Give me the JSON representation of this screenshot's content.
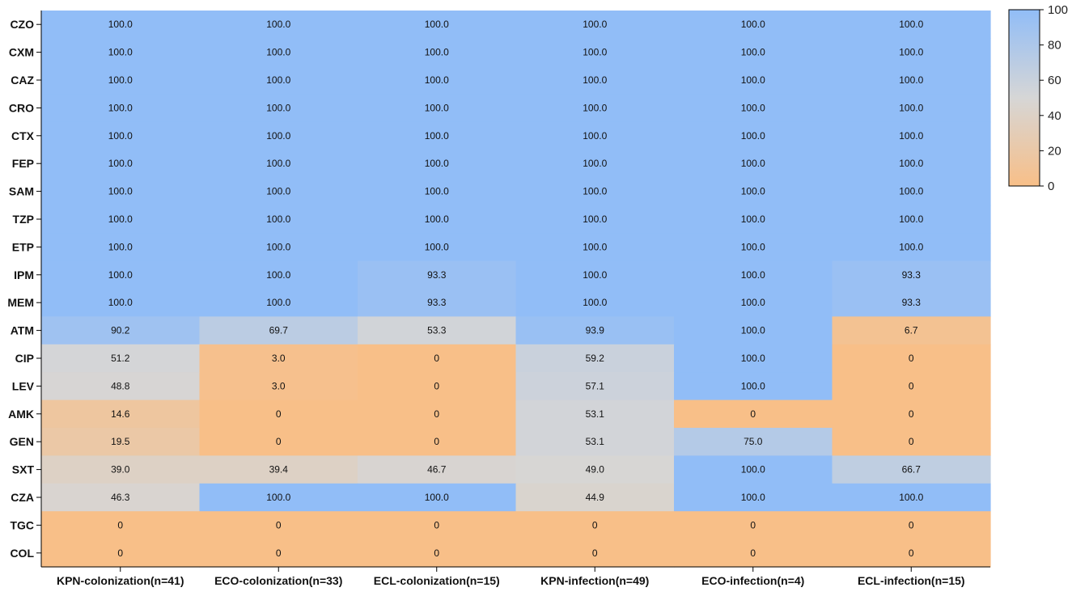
{
  "chart_data": {
    "type": "heatmap",
    "title": "",
    "xlabel": "",
    "ylabel": "",
    "columns": [
      "KPN-colonization(n=41)",
      "ECO-colonization(n=33)",
      "ECL-colonization(n=15)",
      "KPN-infection(n=49)",
      "ECO-infection(n=4)",
      "ECL-infection(n=15)"
    ],
    "rows": [
      "CZO",
      "CXM",
      "CAZ",
      "CRO",
      "CTX",
      "FEP",
      "SAM",
      "TZP",
      "ETP",
      "IPM",
      "MEM",
      "ATM",
      "CIP",
      "LEV",
      "AMK",
      "GEN",
      "SXT",
      "CZA",
      "TGC",
      "COL"
    ],
    "values": [
      [
        100.0,
        100.0,
        100.0,
        100.0,
        100.0,
        100.0
      ],
      [
        100.0,
        100.0,
        100.0,
        100.0,
        100.0,
        100.0
      ],
      [
        100.0,
        100.0,
        100.0,
        100.0,
        100.0,
        100.0
      ],
      [
        100.0,
        100.0,
        100.0,
        100.0,
        100.0,
        100.0
      ],
      [
        100.0,
        100.0,
        100.0,
        100.0,
        100.0,
        100.0
      ],
      [
        100.0,
        100.0,
        100.0,
        100.0,
        100.0,
        100.0
      ],
      [
        100.0,
        100.0,
        100.0,
        100.0,
        100.0,
        100.0
      ],
      [
        100.0,
        100.0,
        100.0,
        100.0,
        100.0,
        100.0
      ],
      [
        100.0,
        100.0,
        100.0,
        100.0,
        100.0,
        100.0
      ],
      [
        100.0,
        100.0,
        93.3,
        100.0,
        100.0,
        93.3
      ],
      [
        100.0,
        100.0,
        93.3,
        100.0,
        100.0,
        93.3
      ],
      [
        90.2,
        69.7,
        53.3,
        93.9,
        100.0,
        6.7
      ],
      [
        51.2,
        3.0,
        0,
        59.2,
        100.0,
        0
      ],
      [
        48.8,
        3.0,
        0,
        57.1,
        100.0,
        0
      ],
      [
        14.6,
        0,
        0,
        53.1,
        0,
        0
      ],
      [
        19.5,
        0,
        0,
        53.1,
        75.0,
        0
      ],
      [
        39.0,
        39.4,
        46.7,
        49.0,
        100.0,
        66.7
      ],
      [
        46.3,
        100.0,
        100.0,
        44.9,
        100.0,
        100.0
      ],
      [
        0,
        0,
        0,
        0,
        0,
        0
      ],
      [
        0,
        0,
        0,
        0,
        0,
        0
      ]
    ],
    "value_labels": [
      [
        "100.0",
        "100.0",
        "100.0",
        "100.0",
        "100.0",
        "100.0"
      ],
      [
        "100.0",
        "100.0",
        "100.0",
        "100.0",
        "100.0",
        "100.0"
      ],
      [
        "100.0",
        "100.0",
        "100.0",
        "100.0",
        "100.0",
        "100.0"
      ],
      [
        "100.0",
        "100.0",
        "100.0",
        "100.0",
        "100.0",
        "100.0"
      ],
      [
        "100.0",
        "100.0",
        "100.0",
        "100.0",
        "100.0",
        "100.0"
      ],
      [
        "100.0",
        "100.0",
        "100.0",
        "100.0",
        "100.0",
        "100.0"
      ],
      [
        "100.0",
        "100.0",
        "100.0",
        "100.0",
        "100.0",
        "100.0"
      ],
      [
        "100.0",
        "100.0",
        "100.0",
        "100.0",
        "100.0",
        "100.0"
      ],
      [
        "100.0",
        "100.0",
        "100.0",
        "100.0",
        "100.0",
        "100.0"
      ],
      [
        "100.0",
        "100.0",
        "93.3",
        "100.0",
        "100.0",
        "93.3"
      ],
      [
        "100.0",
        "100.0",
        "93.3",
        "100.0",
        "100.0",
        "93.3"
      ],
      [
        "90.2",
        "69.7",
        "53.3",
        "93.9",
        "100.0",
        "6.7"
      ],
      [
        "51.2",
        "3.0",
        "0",
        "59.2",
        "100.0",
        "0"
      ],
      [
        "48.8",
        "3.0",
        "0",
        "57.1",
        "100.0",
        "0"
      ],
      [
        "14.6",
        "0",
        "0",
        "53.1",
        "0",
        "0"
      ],
      [
        "19.5",
        "0",
        "0",
        "53.1",
        "75.0",
        "0"
      ],
      [
        "39.0",
        "39.4",
        "46.7",
        "49.0",
        "100.0",
        "66.7"
      ],
      [
        "46.3",
        "100.0",
        "100.0",
        "44.9",
        "100.0",
        "100.0"
      ],
      [
        "0",
        "0",
        "0",
        "0",
        "0",
        "0"
      ],
      [
        "0",
        "0",
        "0",
        "0",
        "0",
        "0"
      ]
    ],
    "color_scale": {
      "range": [
        0,
        100
      ],
      "low_color": "#f8bf88",
      "mid_color": "#d6d6d6",
      "high_color": "#91bdf7",
      "ticks": [
        "0",
        "20",
        "40",
        "60",
        "80",
        "100"
      ]
    },
    "legend_position": "top-right",
    "grid": false
  }
}
